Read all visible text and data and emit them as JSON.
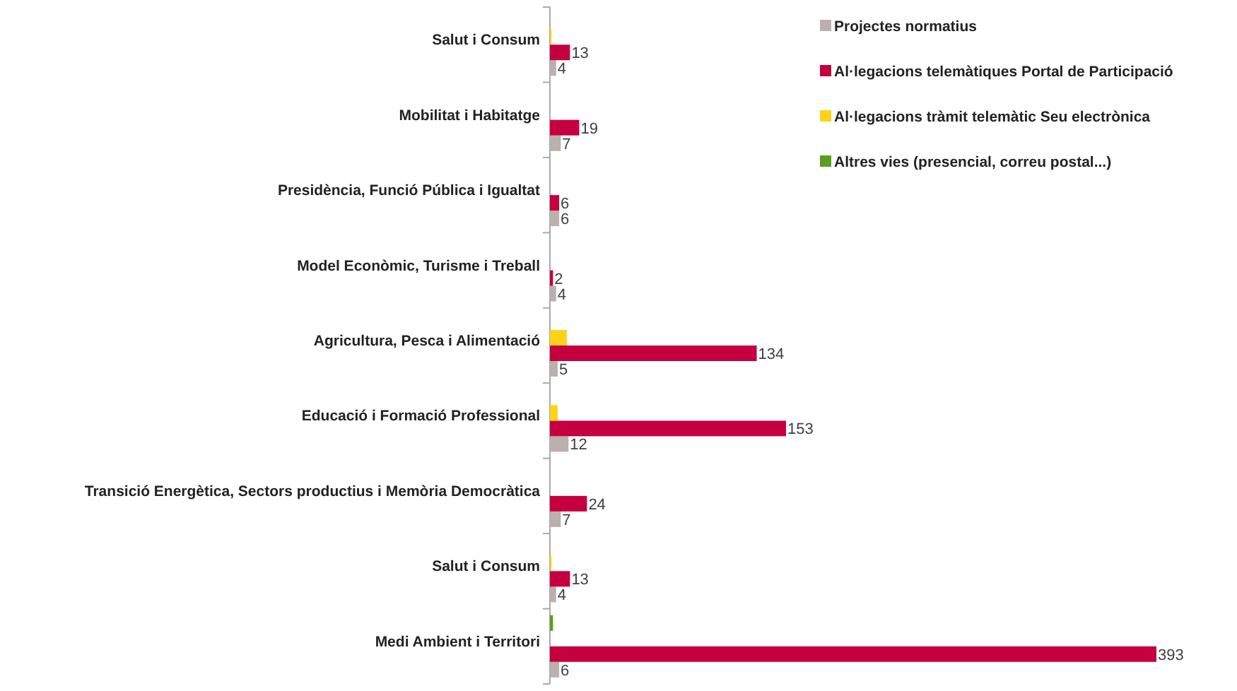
{
  "chart_data": {
    "type": "bar",
    "orientation": "horizontal",
    "categories": [
      "Salut i Consum",
      "Mobilitat i Habitatge",
      "Presidència, Funció Pública i Igualtat",
      "Model Econòmic, Turisme i Treball",
      "Agricultura, Pesca i Alimentació",
      "Educació i Formació Professional",
      "Transició Energètica, Sectors productius i Memòria Democràtica",
      "Salut i Consum",
      "Medi Ambient i Territori"
    ],
    "series": [
      {
        "name": "Projectes normatius",
        "color": "#bab0ac",
        "values": [
          4,
          7,
          6,
          4,
          5,
          12,
          7,
          4,
          6
        ],
        "value_labels": [
          "4",
          "7",
          "6",
          "4",
          "5",
          "12",
          "7",
          "4",
          "6"
        ]
      },
      {
        "name": "Al·legacions telemàtiques Portal de Participació",
        "color": "#c4003f",
        "values": [
          13,
          19,
          6,
          2,
          134,
          153,
          24,
          13,
          393
        ],
        "value_labels": [
          "13",
          "19",
          "6",
          "2",
          "134",
          "153",
          "24",
          "13",
          "393"
        ]
      },
      {
        "name": "Al·legacions tràmit telemàtic Seu electrònica",
        "color": "#ffd119",
        "values": [
          1,
          null,
          null,
          null,
          11,
          5,
          null,
          1,
          null
        ]
      },
      {
        "name": "Altres vies (presencial, correu postal...)",
        "color": "#5b9e1f",
        "values": [
          null,
          null,
          null,
          null,
          null,
          null,
          null,
          null,
          2
        ]
      }
    ],
    "legend": "top right",
    "tick_labels": "y"
  }
}
